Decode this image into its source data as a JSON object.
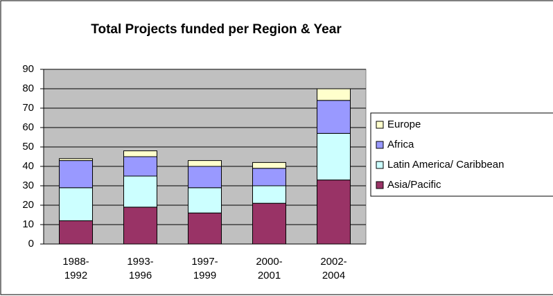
{
  "chart_data": {
    "type": "stacked_bar",
    "title": "Total Projects funded per Region & Year",
    "categories": [
      "1988-\n1992",
      "1993-\n1996",
      "1997-\n1999",
      "2000-\n2001",
      "2002-\n2004"
    ],
    "series": [
      {
        "name": "Asia/Pacific",
        "color": "#993366",
        "values": [
          12,
          19,
          16,
          21,
          33
        ]
      },
      {
        "name": "Latin America/ Caribbean",
        "color": "#ccffff",
        "values": [
          17,
          16,
          13,
          9,
          24
        ]
      },
      {
        "name": "Africa",
        "color": "#9999ff",
        "values": [
          14,
          10,
          11,
          9,
          17
        ]
      },
      {
        "name": "Europe",
        "color": "#ffffcc",
        "values": [
          1,
          3,
          3,
          3,
          6
        ]
      }
    ],
    "ylim": [
      0,
      90
    ],
    "yticks": [
      0,
      10,
      20,
      30,
      40,
      50,
      60,
      70,
      80,
      90
    ],
    "grid": true,
    "legend": "right"
  }
}
